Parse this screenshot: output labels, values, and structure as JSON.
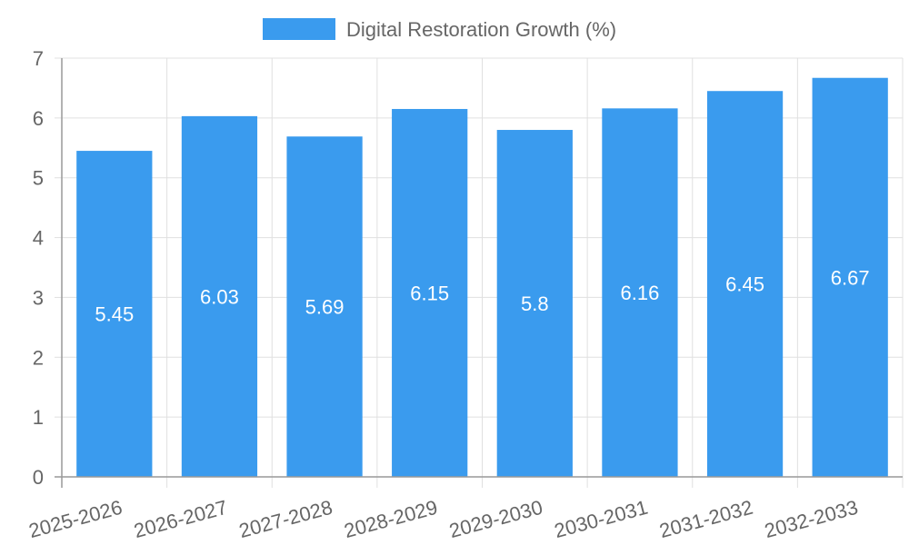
{
  "chart_data": {
    "type": "bar",
    "title": "",
    "xlabel": "",
    "ylabel": "",
    "categories": [
      "2025-2026",
      "2026-2027",
      "2027-2028",
      "2028-2029",
      "2029-2030",
      "2030-2031",
      "2031-2032",
      "2032-2033"
    ],
    "series": [
      {
        "name": "Digital Restoration Growth (%)",
        "values": [
          5.45,
          6.03,
          5.69,
          6.15,
          5.8,
          6.16,
          6.45,
          6.67
        ],
        "data_labels": [
          "5.45",
          "6.03",
          "5.69",
          "6.15",
          "5.8",
          "6.16",
          "6.45",
          "6.67"
        ]
      }
    ],
    "ylim": [
      0,
      7
    ],
    "yticks": [
      "0",
      "1",
      "2",
      "3",
      "4",
      "5",
      "6",
      "7"
    ],
    "grid": true,
    "legend_position": "top-center",
    "colors": {
      "bar": "#3a9bee",
      "grid": "#e0e0e0",
      "axis": "#999999",
      "text": "#666666",
      "label": "#ffffff"
    }
  }
}
